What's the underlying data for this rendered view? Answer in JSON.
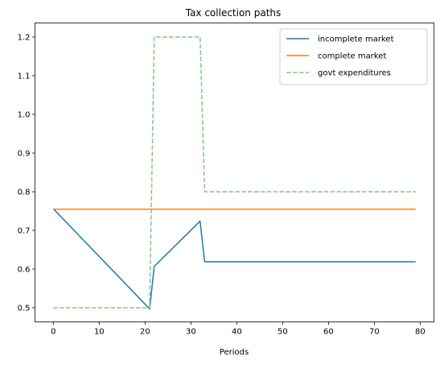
{
  "chart_data": {
    "type": "line",
    "title": "Tax collection paths",
    "xlabel": "Periods",
    "ylabel": "",
    "xlim": [
      -4,
      83
    ],
    "ylim": [
      0.4635,
      1.2365
    ],
    "xticks": [
      0,
      10,
      20,
      30,
      40,
      50,
      60,
      70,
      80
    ],
    "yticks": [
      0.5,
      0.6,
      0.7,
      0.8,
      0.9,
      1.0,
      1.1,
      1.2
    ],
    "ytick_labels": [
      "0.5",
      "0.6",
      "0.7",
      "0.8",
      "0.9",
      "1.0",
      "1.1",
      "1.2"
    ],
    "grid": false,
    "legend_position": "top-right",
    "series": [
      {
        "name": "incomplete market",
        "color": "#1f77b4",
        "style": "solid",
        "x": [
          0,
          21,
          22,
          32,
          33,
          79
        ],
        "y": [
          0.756,
          0.497,
          0.607,
          0.724,
          0.619,
          0.619
        ]
      },
      {
        "name": "complete market",
        "color": "#ff7f0e",
        "style": "solid",
        "x": [
          0,
          79
        ],
        "y": [
          0.755,
          0.755
        ]
      },
      {
        "name": "govt expenditures",
        "color": "#7fc97f",
        "style": "dashed",
        "x": [
          0,
          21,
          22,
          32,
          33,
          79
        ],
        "y": [
          0.5,
          0.5,
          1.2,
          1.2,
          0.8,
          0.8
        ]
      }
    ]
  }
}
